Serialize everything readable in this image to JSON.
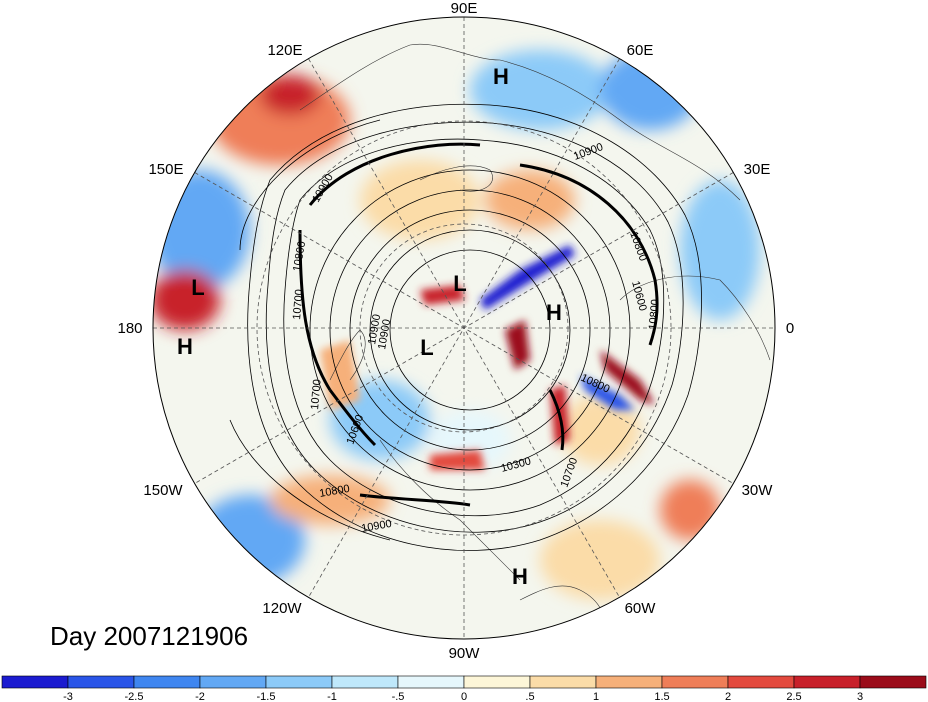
{
  "map": {
    "timestamp_label": "Day 2007121906",
    "longitude_labels": [
      {
        "text": "90E",
        "pos": "top"
      },
      {
        "text": "60E",
        "pos": "top-right"
      },
      {
        "text": "30E",
        "pos": "right-upper"
      },
      {
        "text": "0",
        "pos": "right"
      },
      {
        "text": "30W",
        "pos": "right-lower"
      },
      {
        "text": "60W",
        "pos": "bottom-right"
      },
      {
        "text": "90W",
        "pos": "bottom"
      },
      {
        "text": "120W",
        "pos": "bottom-left"
      },
      {
        "text": "150W",
        "pos": "left-lower"
      },
      {
        "text": "180",
        "pos": "left"
      },
      {
        "text": "150E",
        "pos": "left-upper"
      },
      {
        "text": "120E",
        "pos": "top-left"
      }
    ],
    "pressure_markers": [
      "H",
      "H",
      "H",
      "H",
      "L",
      "L",
      "L"
    ],
    "contour_labels": [
      "10900",
      "10900",
      "10800",
      "10800",
      "10700",
      "10700",
      "10600",
      "10300",
      "10800",
      "10900",
      "10800",
      "10700",
      "10600",
      "10800",
      "10900",
      "10900"
    ]
  },
  "colorbar": {
    "colors": [
      "#1b1bd0",
      "#2a55e8",
      "#3f86f0",
      "#62a8f4",
      "#8ccaf8",
      "#bfe8fb",
      "#e6f7fc",
      "#fdf6d8",
      "#fbdca8",
      "#f6b07a",
      "#ef7e58",
      "#e34a3e",
      "#c8202a",
      "#9b0c1a"
    ],
    "tick_labels": [
      "-3",
      "-2.5",
      "-2",
      "-1.5",
      "-1",
      "-.5",
      "0",
      ".5",
      "1",
      "1.5",
      "2",
      "2.5",
      "3"
    ]
  }
}
